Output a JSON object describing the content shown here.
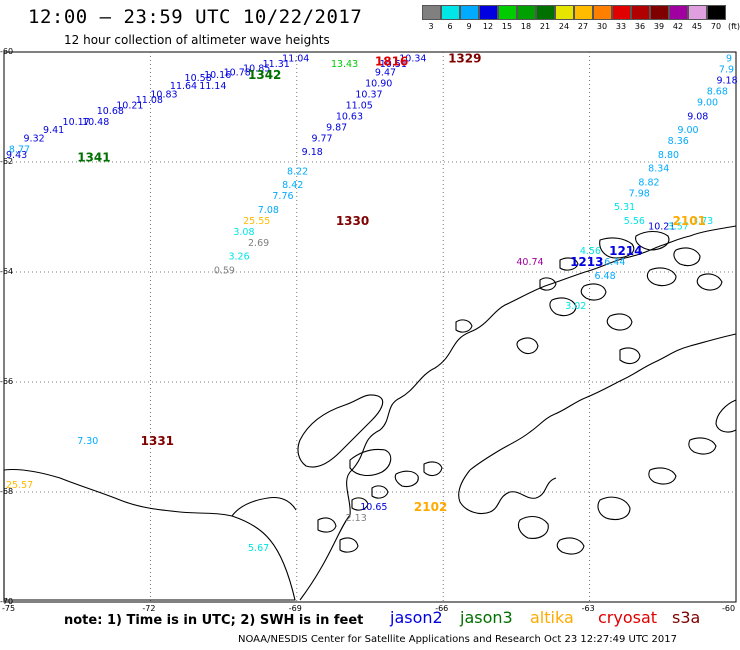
{
  "title": "12:00 – 23:59 UTC 10/22/2017",
  "subtitle": "12 hour collection of altimeter wave heights",
  "note": "note: 1) Time is in UTC; 2) SWH is in feet",
  "credit": "NOAA/NESDIS Center for Satellite Applications and Research   Oct 23 12:27:49 UTC 2017",
  "color_scale": {
    "unit": "(ft)",
    "bins": [
      {
        "label": "3",
        "color": "#808080"
      },
      {
        "label": "6",
        "color": "#00e5e5"
      },
      {
        "label": "9",
        "color": "#00aaff"
      },
      {
        "label": "12",
        "color": "#0000e0"
      },
      {
        "label": "15",
        "color": "#00cc00"
      },
      {
        "label": "18",
        "color": "#00a000"
      },
      {
        "label": "21",
        "color": "#007000"
      },
      {
        "label": "24",
        "color": "#e5e500"
      },
      {
        "label": "27",
        "color": "#ffbb00"
      },
      {
        "label": "30",
        "color": "#ff8000"
      },
      {
        "label": "33",
        "color": "#e00000"
      },
      {
        "label": "36",
        "color": "#b00000"
      },
      {
        "label": "39",
        "color": "#800000"
      },
      {
        "label": "42",
        "color": "#a000a0"
      },
      {
        "label": "45",
        "color": "#e0a0e0"
      },
      {
        "label": "70",
        "color": "#000000"
      }
    ]
  },
  "satellites": [
    {
      "name": "jason2",
      "color": "#0000e0"
    },
    {
      "name": "jason3",
      "color": "#007000"
    },
    {
      "name": "altika",
      "color": "#ffaa00"
    },
    {
      "name": "cryosat",
      "color": "#e00000"
    },
    {
      "name": "s3a",
      "color": "#800000"
    }
  ],
  "axes": {
    "lat_labels": [
      "-60",
      "-62",
      "-64",
      "-66",
      "-68",
      "-70"
    ],
    "lon_labels": [
      "-75",
      "-72",
      "-69",
      "-66",
      "-63",
      "-60"
    ]
  },
  "chart_data": {
    "type": "scatter",
    "x_axis": "longitude",
    "y_axis": "latitude",
    "xlim": [
      -75,
      -60
    ],
    "ylim": [
      -70,
      -60
    ],
    "grid": true,
    "time_labels": [
      {
        "text": "1329",
        "lon": -65.9,
        "lat": -60.1,
        "sat": "s3a"
      },
      {
        "text": "1816",
        "lon": -67.4,
        "lat": -60.15,
        "sat": "cryosat"
      },
      {
        "text": "1342",
        "lon": -70.0,
        "lat": -60.4,
        "sat": "jason3"
      },
      {
        "text": "1341",
        "lon": -73.5,
        "lat": -61.9,
        "sat": "jason3"
      },
      {
        "text": "1330",
        "lon": -68.2,
        "lat": -63.05,
        "sat": "s3a"
      },
      {
        "text": "2101",
        "lon": -61.3,
        "lat": -63.05,
        "sat": "altika"
      },
      {
        "text": "1214",
        "lon": -62.6,
        "lat": -63.6,
        "sat": "jason2"
      },
      {
        "text": "1213",
        "lon": -63.4,
        "lat": -63.8,
        "sat": "jason2"
      },
      {
        "text": "1331",
        "lon": -72.2,
        "lat": -67.05,
        "sat": "s3a"
      },
      {
        "text": "2102",
        "lon": -66.6,
        "lat": -68.25,
        "sat": "altika"
      }
    ],
    "swh_labels": [
      {
        "text": "11.04",
        "lon": -69.3,
        "lat": -60.1
      },
      {
        "text": "10.34",
        "lon": -66.9,
        "lat": -60.1
      },
      {
        "text": "13.43",
        "lon": -68.3,
        "lat": -60.2
      },
      {
        "text": "11.31",
        "lon": -69.7,
        "lat": -60.2
      },
      {
        "text": "10.51",
        "lon": -67.3,
        "lat": -60.2
      },
      {
        "text": "10.85",
        "lon": -70.1,
        "lat": -60.28
      },
      {
        "text": "9.47",
        "lon": -67.4,
        "lat": -60.35
      },
      {
        "text": "10.78",
        "lon": -70.5,
        "lat": -60.35
      },
      {
        "text": "10.58",
        "lon": -71.3,
        "lat": -60.45
      },
      {
        "text": "10.16",
        "lon": -70.9,
        "lat": -60.4
      },
      {
        "text": "10.90",
        "lon": -67.6,
        "lat": -60.55
      },
      {
        "text": "11.64",
        "lon": -71.6,
        "lat": -60.6
      },
      {
        "text": "11.14",
        "lon": -71.0,
        "lat": -60.6
      },
      {
        "text": "10.37",
        "lon": -67.8,
        "lat": -60.75
      },
      {
        "text": "10.83",
        "lon": -72.0,
        "lat": -60.75
      },
      {
        "text": "11.08",
        "lon": -72.3,
        "lat": -60.85
      },
      {
        "text": "11.05",
        "lon": -68.0,
        "lat": -60.95
      },
      {
        "text": "10.21",
        "lon": -72.7,
        "lat": -60.95
      },
      {
        "text": "10.68",
        "lon": -73.1,
        "lat": -61.05
      },
      {
        "text": "10.63",
        "lon": -68.2,
        "lat": -61.15
      },
      {
        "text": "10.17",
        "lon": -73.8,
        "lat": -61.25
      },
      {
        "text": "10.48",
        "lon": -73.4,
        "lat": -61.25
      },
      {
        "text": "9.87",
        "lon": -68.4,
        "lat": -61.35
      },
      {
        "text": "9.41",
        "lon": -74.2,
        "lat": -61.4
      },
      {
        "text": "9.32",
        "lon": -74.6,
        "lat": -61.55
      },
      {
        "text": "9.77",
        "lon": -68.7,
        "lat": -61.55
      },
      {
        "text": "8.77",
        "lon": -74.9,
        "lat": -61.75
      },
      {
        "text": "9.43",
        "lon": -75.6,
        "lat": -61.85
      },
      {
        "text": "9.18",
        "lon": -68.9,
        "lat": -61.8
      },
      {
        "text": "8.22",
        "lon": -69.2,
        "lat": -62.15
      },
      {
        "text": "8.42",
        "lon": -69.3,
        "lat": -62.4
      },
      {
        "text": "7.76",
        "lon": -69.5,
        "lat": -62.6
      },
      {
        "text": "7.08",
        "lon": -69.8,
        "lat": -62.85
      },
      {
        "text": "25.55",
        "lon": -70.1,
        "lat": -63.05
      },
      {
        "text": "3.08",
        "lon": -70.3,
        "lat": -63.25
      },
      {
        "text": "2.69",
        "lon": -70.0,
        "lat": -63.45
      },
      {
        "text": "3.26",
        "lon": -70.4,
        "lat": -63.7
      },
      {
        "text": "0.59",
        "lon": -70.7,
        "lat": -63.95
      },
      {
        "text": "9",
        "lon": -60.15,
        "lat": -60.1
      },
      {
        "text": "7.9",
        "lon": -60.35,
        "lat": -60.3
      },
      {
        "text": "9.18",
        "lon": -60.4,
        "lat": -60.5
      },
      {
        "text": "8.68",
        "lon": -60.6,
        "lat": -60.7
      },
      {
        "text": "9.00",
        "lon": -60.8,
        "lat": -60.9
      },
      {
        "text": "9.08",
        "lon": -61.0,
        "lat": -61.15
      },
      {
        "text": "9.00",
        "lon": -61.2,
        "lat": -61.4
      },
      {
        "text": "8.36",
        "lon": -61.4,
        "lat": -61.6
      },
      {
        "text": "8.80",
        "lon": -61.6,
        "lat": -61.85
      },
      {
        "text": "8.34",
        "lon": -61.8,
        "lat": -62.1
      },
      {
        "text": "8.82",
        "lon": -62.0,
        "lat": -62.35
      },
      {
        "text": "7.98",
        "lon": -62.2,
        "lat": -62.55
      },
      {
        "text": "5.31",
        "lon": -62.5,
        "lat": -62.8
      },
      {
        "text": "5.56",
        "lon": -62.3,
        "lat": -63.05
      },
      {
        "text": "3.73",
        "lon": -60.9,
        "lat": -63.05
      },
      {
        "text": "10.21",
        "lon": -61.8,
        "lat": -63.15
      },
      {
        "text": "3.57",
        "lon": -61.4,
        "lat": -63.15
      },
      {
        "text": "4.56",
        "lon": -63.2,
        "lat": -63.6
      },
      {
        "text": "40.74",
        "lon": -64.5,
        "lat": -63.8
      },
      {
        "text": "6.44",
        "lon": -62.7,
        "lat": -63.8
      },
      {
        "text": "6.48",
        "lon": -62.9,
        "lat": -64.05
      },
      {
        "text": "3.02",
        "lon": -63.5,
        "lat": -64.6
      },
      {
        "text": "7.30",
        "lon": -73.5,
        "lat": -67.05
      },
      {
        "text": "25.57",
        "lon": -75.0,
        "lat": -67.85
      },
      {
        "text": "10.65",
        "lon": -67.7,
        "lat": -68.25
      },
      {
        "text": "2.13",
        "lon": -68.0,
        "lat": -68.45
      },
      {
        "text": "5.67",
        "lon": -70.0,
        "lat": -69.0
      }
    ]
  }
}
